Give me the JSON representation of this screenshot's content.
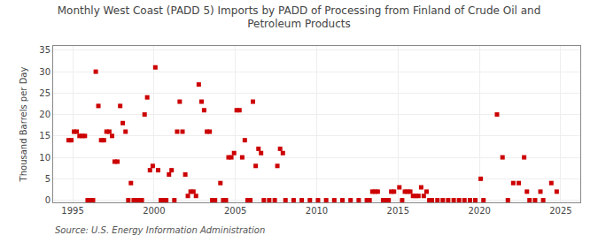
{
  "chart_data": {
    "type": "scatter",
    "title": "Monthly West Coast (PADD 5) Imports by PADD of Processing from Finland of Crude Oil and\nPetroleum Products",
    "ylabel": "Thousand Barrels per Day",
    "annotations": [
      "Source: U.S. Energy Information Administration"
    ],
    "color": "#cc0000",
    "marker": "square",
    "grid": true,
    "xlim": [
      1993.8,
      2026.2
    ],
    "ylim": [
      -0.5,
      36
    ],
    "xticks": [
      1995,
      2000,
      2005,
      2010,
      2015,
      2020,
      2025
    ],
    "yticks": [
      0,
      5,
      10,
      15,
      20,
      25,
      30,
      35
    ],
    "x": [
      1994.75,
      1994.92,
      1995.08,
      1995.25,
      1995.42,
      1995.58,
      1995.75,
      1995.92,
      1996.08,
      1996.25,
      1996.42,
      1996.58,
      1996.75,
      1996.92,
      1997.08,
      1997.25,
      1997.42,
      1997.58,
      1997.75,
      1997.92,
      1998.08,
      1998.25,
      1998.42,
      1998.58,
      1998.75,
      1998.92,
      1999.08,
      1999.25,
      1999.42,
      1999.58,
      1999.75,
      1999.92,
      2000.08,
      2000.25,
      2000.42,
      2000.58,
      2000.75,
      2000.92,
      2001.08,
      2001.25,
      2001.42,
      2001.58,
      2001.75,
      2001.92,
      2002.08,
      2002.25,
      2002.42,
      2002.58,
      2002.75,
      2002.92,
      2003.08,
      2003.25,
      2003.42,
      2003.58,
      2003.75,
      2004.08,
      2004.25,
      2004.42,
      2004.58,
      2004.75,
      2004.92,
      2005.08,
      2005.25,
      2005.42,
      2005.58,
      2005.75,
      2005.92,
      2006.08,
      2006.25,
      2006.42,
      2006.58,
      2006.75,
      2007.08,
      2007.42,
      2007.58,
      2007.75,
      2007.92,
      2008.08,
      2008.58,
      2009.08,
      2009.58,
      2010.08,
      2010.58,
      2011.08,
      2011.58,
      2012.08,
      2012.58,
      2013.08,
      2013.25,
      2013.42,
      2013.58,
      2013.75,
      2014.08,
      2014.25,
      2014.42,
      2014.58,
      2014.75,
      2015.08,
      2015.25,
      2015.42,
      2015.58,
      2015.75,
      2015.92,
      2016.08,
      2016.25,
      2016.42,
      2016.58,
      2016.75,
      2016.92,
      2017.08,
      2017.42,
      2017.75,
      2018.08,
      2018.42,
      2018.75,
      2019.08,
      2019.42,
      2019.75,
      2020.08,
      2020.25,
      2021.08,
      2021.42,
      2021.75,
      2022.08,
      2022.42,
      2022.75,
      2022.92,
      2023.08,
      2023.42,
      2023.75,
      2023.92,
      2024.42,
      2024.75
    ],
    "values": [
      14,
      14,
      16,
      16,
      15,
      15,
      15,
      0,
      0,
      0,
      30,
      22,
      14,
      14,
      16,
      16,
      15,
      9,
      9,
      22,
      18,
      16,
      0,
      4,
      0,
      0,
      0,
      0,
      20,
      24,
      7,
      8,
      31,
      7,
      0,
      0,
      0,
      6,
      7,
      0,
      16,
      23,
      16,
      6,
      1,
      2,
      2,
      1,
      27,
      23,
      21,
      16,
      16,
      0,
      0,
      4,
      0,
      0,
      10,
      10,
      11,
      21,
      21,
      10,
      14,
      0,
      0,
      23,
      8,
      12,
      11,
      0,
      0,
      0,
      8,
      12,
      11,
      0,
      0,
      0,
      0,
      0,
      0,
      0,
      0,
      0,
      0,
      0,
      0,
      2,
      2,
      2,
      0,
      0,
      0,
      2,
      2,
      3,
      0,
      2,
      2,
      2,
      1,
      1,
      1,
      3,
      1,
      2,
      0,
      0,
      0,
      0,
      0,
      0,
      0,
      0,
      0,
      0,
      5,
      0,
      20,
      10,
      0,
      4,
      4,
      10,
      2,
      0,
      0,
      2,
      0,
      4,
      2
    ]
  }
}
